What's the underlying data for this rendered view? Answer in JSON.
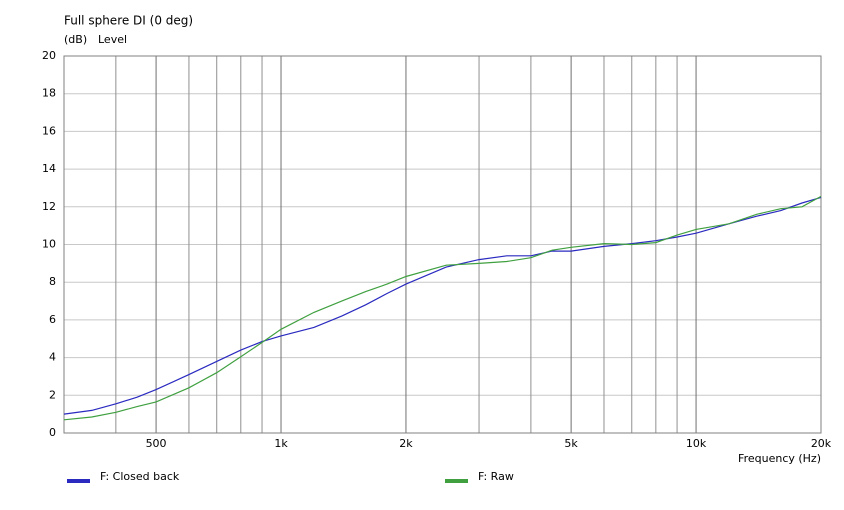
{
  "chart_data": {
    "type": "line",
    "title": "Full sphere DI (0 deg)",
    "y_label_unit": "(dB)",
    "y_label": "Level",
    "x_label": "Frequency  (Hz)",
    "x_scale": "log",
    "grid": true,
    "xlim": [
      300,
      20000
    ],
    "xticks": [
      500,
      {
        "value": 1000,
        "label": "1k"
      },
      {
        "value": 2000,
        "label": "2k"
      },
      {
        "value": 5000,
        "label": "5k"
      },
      {
        "value": 10000,
        "label": "10k"
      },
      {
        "value": 20000,
        "label": "20k"
      }
    ],
    "xminorticks": [
      400,
      600,
      700,
      800,
      900,
      3000,
      4000,
      6000,
      7000,
      8000,
      9000
    ],
    "ylim": [
      0,
      20
    ],
    "yticks": [
      0,
      2,
      4,
      6,
      8,
      10,
      12,
      14,
      16,
      18,
      20
    ],
    "x": [
      300,
      350,
      400,
      450,
      500,
      600,
      700,
      800,
      900,
      1000,
      1200,
      1400,
      1600,
      1800,
      2000,
      2500,
      3000,
      3500,
      4000,
      4500,
      5000,
      6000,
      7000,
      8000,
      9000,
      10000,
      12000,
      14000,
      16000,
      18000,
      20000
    ],
    "series": [
      {
        "name": "F: Closed back",
        "color": "#2a2ac0",
        "values": [
          1.0,
          1.2,
          1.55,
          1.9,
          2.3,
          3.1,
          3.8,
          4.4,
          4.85,
          5.15,
          5.6,
          6.2,
          6.8,
          7.4,
          7.9,
          8.8,
          9.2,
          9.4,
          9.4,
          9.65,
          9.65,
          9.9,
          10.05,
          10.2,
          10.4,
          10.6,
          11.1,
          11.5,
          11.8,
          12.2,
          12.5
        ]
      },
      {
        "name": "F: Raw",
        "color": "#40a040",
        "values": [
          0.7,
          0.85,
          1.1,
          1.4,
          1.65,
          2.4,
          3.2,
          4.05,
          4.8,
          5.5,
          6.4,
          7.0,
          7.5,
          7.9,
          8.3,
          8.9,
          9.0,
          9.1,
          9.3,
          9.7,
          9.85,
          10.05,
          10.0,
          10.1,
          10.5,
          10.8,
          11.1,
          11.6,
          11.9,
          12.0,
          12.55
        ]
      }
    ]
  }
}
